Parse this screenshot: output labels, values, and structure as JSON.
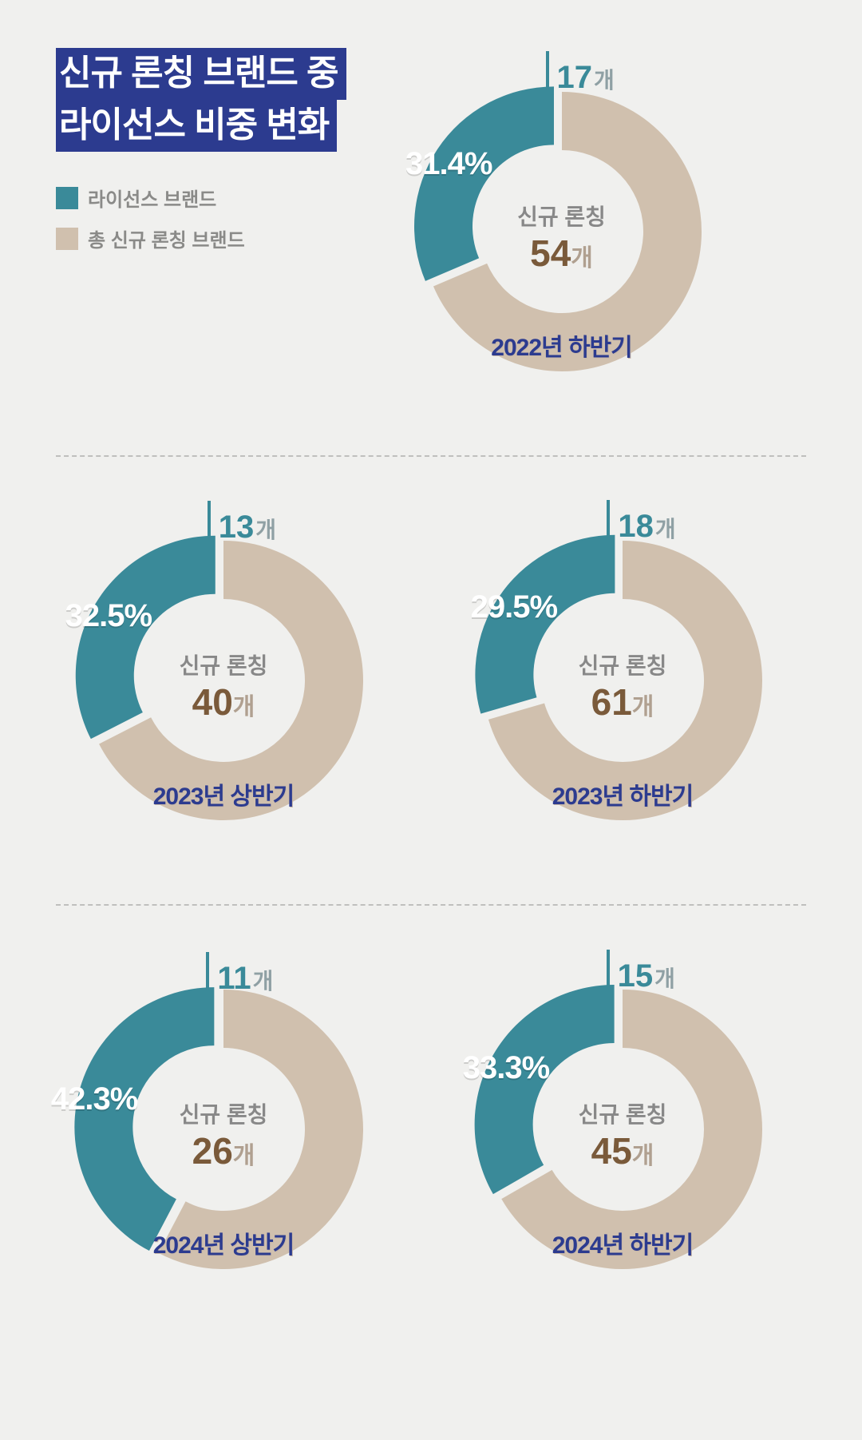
{
  "colors": {
    "background": "#f0f0ee",
    "title_bg": "#2c3b8f",
    "title_text": "#ffffff",
    "teal": "#3a8a99",
    "beige": "#d0c0ae",
    "legend_text": "#8a8a88",
    "center_top": "#888888",
    "center_num": "#7a5a3a",
    "center_unit": "#b0a090",
    "period": "#2c3b8f",
    "divider": "#bfbfbd",
    "count_unit": "#8fa0a4",
    "pct_text": "#ffffff"
  },
  "typography": {
    "title_fontsize": 44,
    "legend_fontsize": 24,
    "count_num_fontsize": 40,
    "count_unit_fontsize": 28,
    "pct_fontsize": 40,
    "center_top_fontsize": 28,
    "center_num_fontsize": 46,
    "center_unit_fontsize": 30,
    "period_fontsize": 30
  },
  "geometry": {
    "outer_radius": 175,
    "inner_radius": 102,
    "slice_pop": 12,
    "svg_size": 420
  },
  "title": {
    "line1": "신규 론칭 브랜드 중",
    "line2": "라이선스 비중 변화"
  },
  "legend": {
    "items": [
      {
        "label": "라이선스 브랜드",
        "color": "#3a8a99"
      },
      {
        "label": "총 신규 론칭 브랜드",
        "color": "#d0c0ae"
      }
    ]
  },
  "center_text": {
    "top": "신규 론칭",
    "unit": "개"
  },
  "count_unit": "개",
  "charts": [
    {
      "count": 17,
      "pct": 31.4,
      "pct_text": "31.4%",
      "total": 54,
      "period": "2022년 하반기"
    },
    {
      "count": 13,
      "pct": 32.5,
      "pct_text": "32.5%",
      "total": 40,
      "period": "2023년 상반기"
    },
    {
      "count": 18,
      "pct": 29.5,
      "pct_text": "29.5%",
      "total": 61,
      "period": "2023년 하반기"
    },
    {
      "count": 11,
      "pct": 42.3,
      "pct_text": "42.3%",
      "total": 26,
      "period": "2024년 상반기"
    },
    {
      "count": 15,
      "pct": 33.3,
      "pct_text": "33.3%",
      "total": 45,
      "period": "2024년 하반기"
    }
  ]
}
